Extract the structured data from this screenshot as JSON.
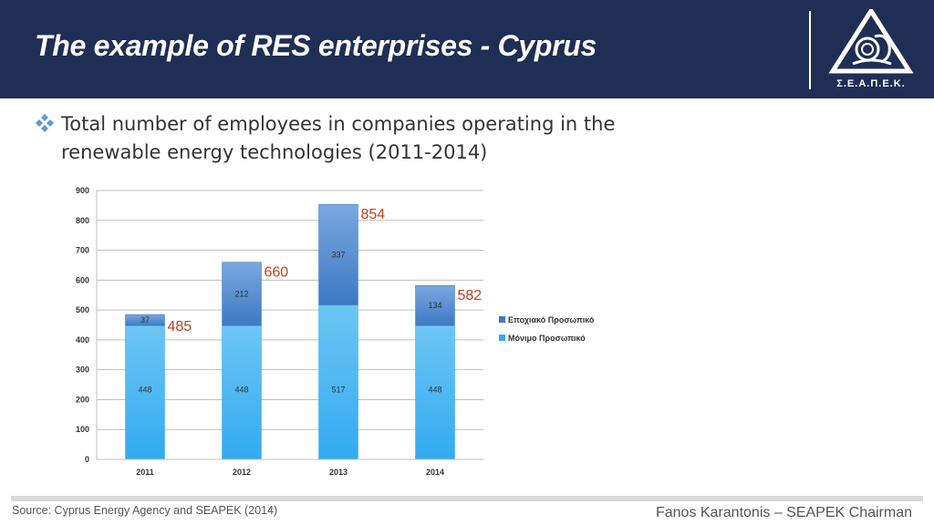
{
  "header": {
    "title": "The example of RES enterprises - Cyprus",
    "logo_text": "Σ.Ε.Α.Π.Ε.Κ."
  },
  "bullet": {
    "icon": "diamond-bullet-icon",
    "text": "Total number of employees in companies operating in the renewable energy technologies (2011-2014)"
  },
  "chart_data": {
    "type": "bar",
    "stacked": true,
    "categories": [
      "2011",
      "2012",
      "2013",
      "2014"
    ],
    "series": [
      {
        "name": "Μόνιμο Προσωπικό",
        "values": [
          448,
          448,
          517,
          448
        ],
        "color": "#33aaf0"
      },
      {
        "name": "Εποχιακό Προσωπικό",
        "values": [
          37,
          212,
          337,
          134
        ],
        "color": "#3d79c4"
      }
    ],
    "totals": [
      485,
      660,
      854,
      582
    ],
    "total_label_color": "#c0401c",
    "ylim": [
      0,
      900
    ],
    "yticks": [
      0,
      100,
      200,
      300,
      400,
      500,
      600,
      700,
      800,
      900
    ],
    "grid": true,
    "legend_position": "right",
    "title": "",
    "xlabel": "",
    "ylabel": ""
  },
  "footer": {
    "source": "Source: Cyprus Energy Agency and SEAPEK (2014)",
    "author": "Fanos Karantonis – SEAPEK Chairman"
  }
}
